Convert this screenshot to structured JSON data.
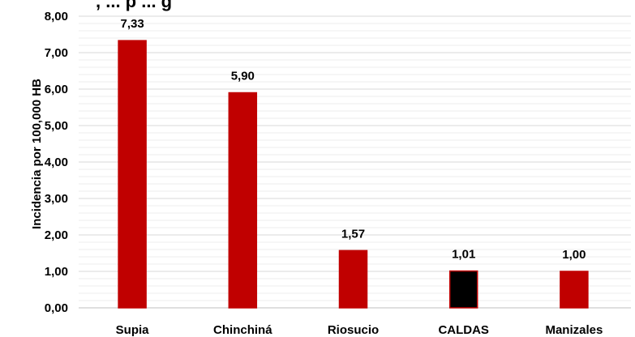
{
  "chart_data": {
    "type": "bar",
    "title": ", ... p ... g",
    "ylabel": "Incidencia por 100,000 HB",
    "xlabel": "",
    "categories": [
      "Supia",
      "Chinchiná",
      "Riosucio",
      "CALDAS",
      "Manizales"
    ],
    "values": [
      7.33,
      5.9,
      1.57,
      1.01,
      1.0
    ],
    "data_labels": [
      "7,33",
      "5,90",
      "1,57",
      "1,01",
      "1,00"
    ],
    "bar_colors": [
      "#c00000",
      "#c00000",
      "#c00000",
      "#000000",
      "#c00000"
    ],
    "bar_edge_colors": [
      "#c00000",
      "#c00000",
      "#c00000",
      "#c00000",
      "#c00000"
    ],
    "ylim": [
      0,
      8
    ],
    "yticks": [
      0,
      1,
      2,
      3,
      4,
      5,
      6,
      7,
      8
    ],
    "ytick_labels": [
      "0,00",
      "1,00",
      "2,00",
      "3,00",
      "4,00",
      "5,00",
      "6,00",
      "7,00",
      "8,00"
    ],
    "minor_grid_step": 0.2,
    "grid": true,
    "legend": "none"
  }
}
